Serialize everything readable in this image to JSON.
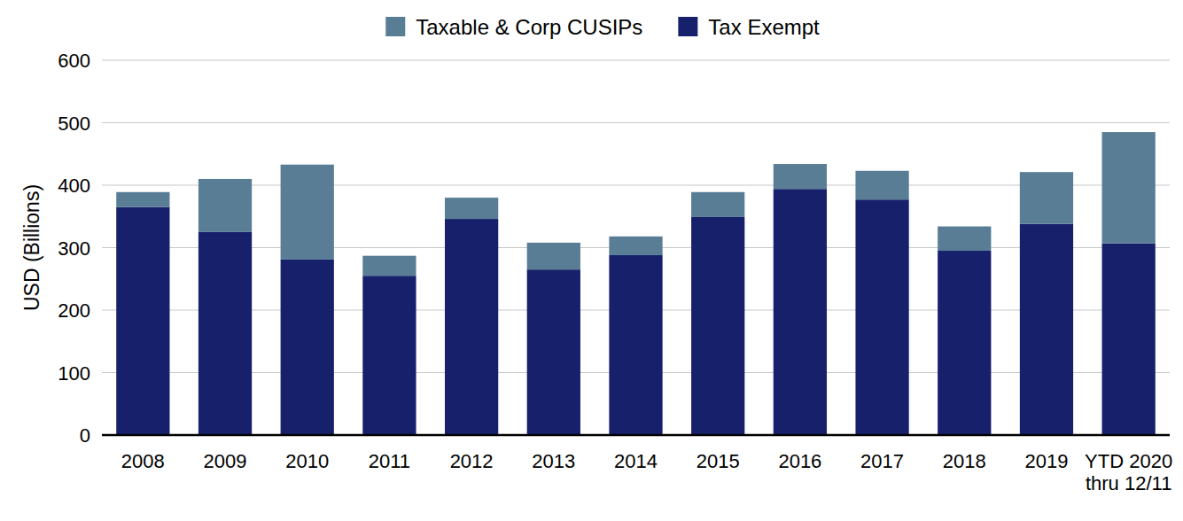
{
  "chart_data": {
    "type": "bar",
    "stacked": true,
    "grid": true,
    "legend": "top",
    "y_label": "USD (Billions)",
    "categories": [
      "2008",
      "2009",
      "2010",
      "2011",
      "2012",
      "2013",
      "2014",
      "2015",
      "2016",
      "2017",
      "2018",
      "2019",
      "YTD 2020\nthru 12/11"
    ],
    "series": [
      {
        "name": "Tax Exempt",
        "color": "#16206b",
        "values": [
          365,
          325,
          281,
          255,
          346,
          265,
          288,
          349,
          394,
          377,
          295,
          338,
          307
        ]
      },
      {
        "name": "Taxable & Corp CUSIPs",
        "color": "#5a7d96",
        "values": [
          24,
          85,
          152,
          32,
          34,
          43,
          30,
          40,
          40,
          46,
          39,
          83,
          178
        ]
      }
    ],
    "ylim": [
      0,
      600
    ],
    "yticks": [
      0,
      100,
      200,
      300,
      400,
      500,
      600
    ]
  }
}
